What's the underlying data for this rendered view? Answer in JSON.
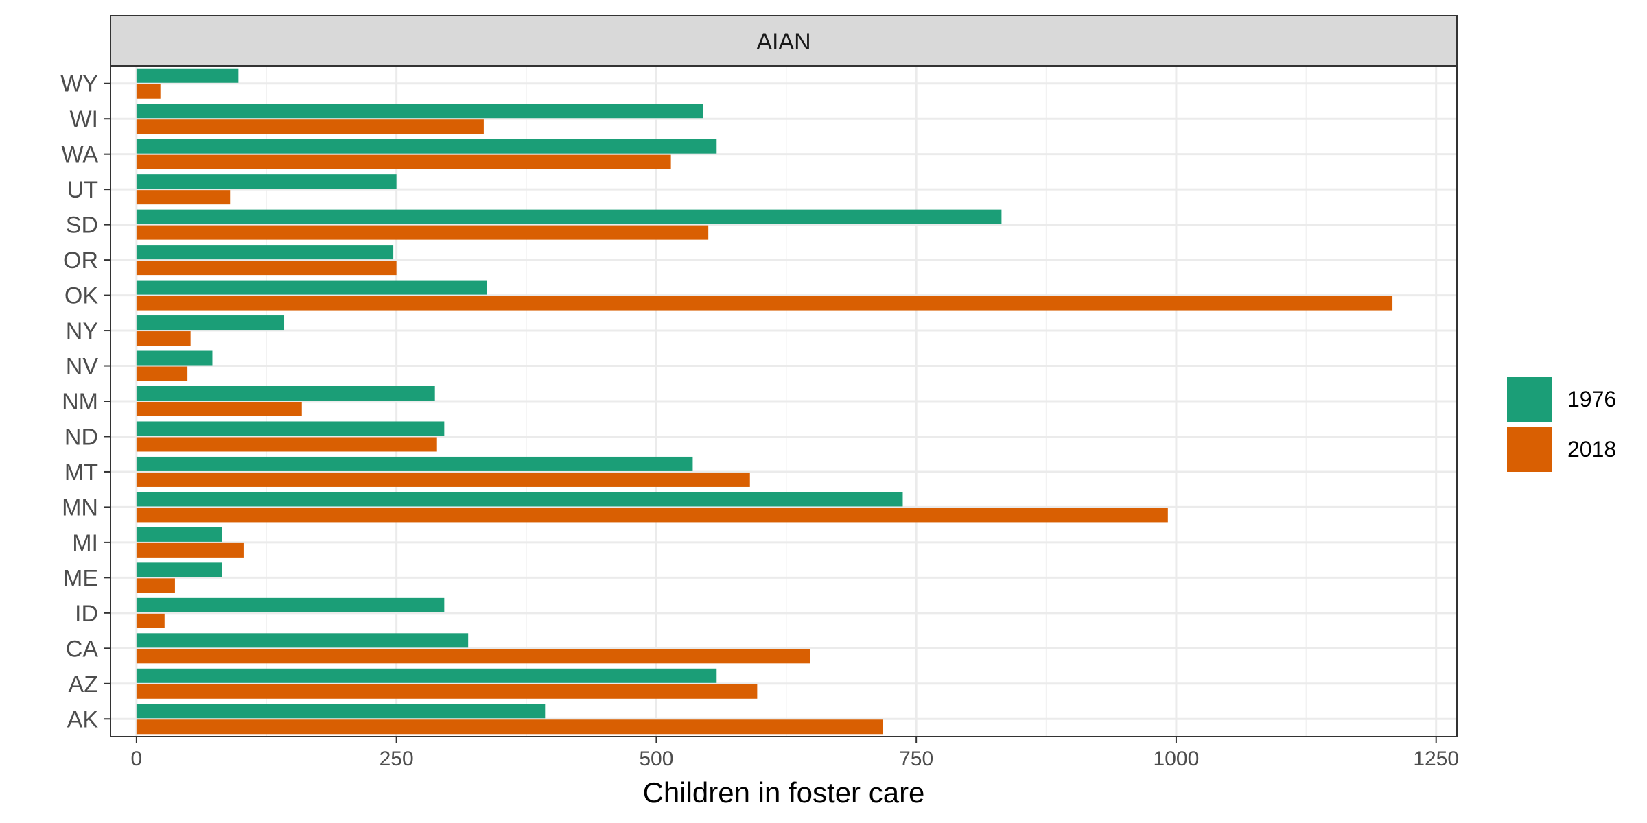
{
  "chart_data": {
    "type": "bar",
    "orientation": "horizontal",
    "facet_label": "AIAN",
    "title": "",
    "xlabel": "Children in foster care",
    "ylabel": "",
    "xlim": [
      -25,
      1270
    ],
    "x_ticks": [
      0,
      250,
      500,
      750,
      1000,
      1250
    ],
    "x_minor_ticks": [
      125,
      375,
      625,
      875,
      1125
    ],
    "grid": true,
    "legend_position": "right",
    "categories": [
      "AK",
      "AZ",
      "CA",
      "ID",
      "ME",
      "MI",
      "MN",
      "MT",
      "ND",
      "NM",
      "NV",
      "NY",
      "OK",
      "OR",
      "SD",
      "UT",
      "WA",
      "WI",
      "WY"
    ],
    "series": [
      {
        "name": "1976",
        "color": "#1B9E77",
        "values": [
          393,
          558,
          319,
          296,
          82,
          82,
          737,
          535,
          296,
          287,
          73,
          142,
          337,
          247,
          832,
          250,
          558,
          545,
          98
        ]
      },
      {
        "name": "2018",
        "color": "#D95F02",
        "values": [
          718,
          597,
          648,
          27,
          37,
          103,
          992,
          590,
          289,
          159,
          49,
          52,
          1208,
          250,
          550,
          90,
          514,
          334,
          23
        ]
      }
    ]
  }
}
